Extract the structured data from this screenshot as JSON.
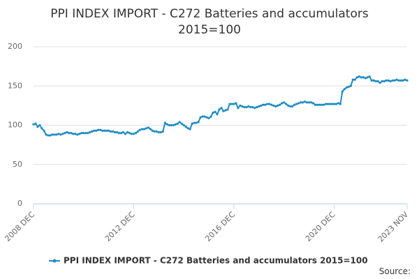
{
  "chart_data": {
    "type": "line",
    "title": "PPI INDEX IMPORT - C272 Batteries and accumulators",
    "subtitle": "2015=100",
    "source": "Source:",
    "categories": [
      "2008 DEC",
      null,
      null,
      null,
      null,
      null,
      null,
      null,
      null,
      null,
      null,
      null,
      null,
      null,
      null,
      null,
      null,
      null,
      null,
      null,
      null,
      null,
      null,
      null,
      null,
      null,
      null,
      null,
      null,
      null,
      null,
      null,
      null,
      null,
      null,
      null,
      null,
      null,
      null,
      null,
      null,
      null,
      null,
      null,
      null,
      null,
      null,
      null,
      "2012 DEC",
      null,
      null,
      null,
      null,
      null,
      null,
      null,
      null,
      null,
      null,
      null,
      null,
      null,
      null,
      null,
      null,
      null,
      null,
      null,
      null,
      null,
      null,
      null,
      null,
      null,
      null,
      null,
      null,
      null,
      null,
      null,
      null,
      null,
      null,
      null,
      null,
      null,
      null,
      null,
      null,
      null,
      null,
      null,
      null,
      null,
      null,
      null,
      "2016 DEC",
      null,
      null,
      null,
      null,
      null,
      null,
      null,
      null,
      null,
      null,
      null,
      null,
      null,
      null,
      null,
      null,
      null,
      null,
      null,
      null,
      null,
      null,
      null,
      null,
      null,
      null,
      null,
      null,
      null,
      null,
      null,
      null,
      null,
      null,
      null,
      null,
      null,
      null,
      null,
      null,
      null,
      null,
      null,
      null,
      null,
      null,
      null,
      "2020 DEC",
      null,
      null,
      null,
      null,
      null,
      null,
      null,
      null,
      null,
      null,
      null,
      null,
      null,
      null,
      null,
      null,
      null,
      null,
      null,
      null,
      null,
      null,
      null,
      null,
      null,
      null,
      null,
      null,
      null,
      null,
      null,
      null,
      null,
      null,
      "2023 NOV"
    ],
    "series": [
      {
        "name": "PPI INDEX IMPORT - C272 Batteries and accumulators 2015=100",
        "color": "#1f8bc4",
        "values": [
          101,
          102,
          98,
          100,
          96,
          93,
          88,
          87,
          87,
          88,
          88,
          88,
          89,
          88,
          89,
          90,
          91,
          90,
          90,
          89,
          89,
          88,
          89,
          90,
          90,
          90,
          90,
          91,
          92,
          93,
          93,
          94,
          94,
          93,
          93,
          93,
          93,
          92,
          92,
          91,
          91,
          90,
          90,
          91,
          89,
          91,
          90,
          89,
          89,
          90,
          92,
          94,
          95,
          95,
          96,
          97,
          95,
          93,
          92,
          92,
          91,
          91,
          92,
          103,
          101,
          100,
          100,
          100,
          101,
          102,
          104,
          102,
          100,
          98,
          96,
          95,
          102,
          103,
          103,
          104,
          110,
          111,
          111,
          110,
          109,
          111,
          116,
          117,
          114,
          120,
          122,
          118,
          119,
          120,
          127,
          127,
          127,
          128,
          122,
          125,
          124,
          123,
          123,
          124,
          123,
          123,
          122,
          123,
          124,
          125,
          126,
          126,
          127,
          127,
          126,
          125,
          124,
          125,
          126,
          128,
          129,
          127,
          125,
          124,
          124,
          126,
          127,
          128,
          129,
          129,
          130,
          129,
          129,
          129,
          128,
          126,
          126,
          126,
          126,
          126,
          127,
          127,
          127,
          127,
          127,
          127,
          128,
          127,
          143,
          146,
          148,
          149,
          150,
          158,
          158,
          161,
          162,
          161,
          161,
          160,
          161,
          162,
          157,
          157,
          156,
          156,
          154,
          156,
          156,
          157,
          157,
          156,
          157,
          157,
          158,
          157,
          157,
          157,
          158,
          157
        ]
      }
    ],
    "ylim": [
      0,
      200
    ],
    "yticks": [
      0,
      50,
      100,
      150,
      200
    ],
    "grid": true
  }
}
